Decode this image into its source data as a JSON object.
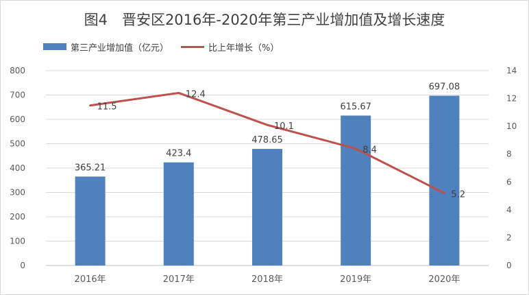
{
  "chart_data": {
    "type": "bar",
    "title": "图4　晋安区2016年-2020年第三产业增加值及增长速度",
    "categories": [
      "2016年",
      "2017年",
      "2018年",
      "2019年",
      "2020年"
    ],
    "series": [
      {
        "name": "第三产业增加值（亿元）",
        "type": "bar",
        "axis": "left",
        "color": "#4f81bd",
        "values": [
          365.21,
          423.4,
          478.65,
          615.67,
          697.08
        ],
        "labels": [
          "365.21",
          "423.4",
          "478.65",
          "615.67",
          "697.08"
        ]
      },
      {
        "name": "比上年增长（%）",
        "type": "line",
        "axis": "right",
        "color": "#c0504d",
        "values": [
          11.5,
          12.4,
          10.1,
          8.4,
          5.2
        ],
        "labels": [
          "11.5",
          "12.4",
          "10.1",
          "8.4",
          "5.2"
        ]
      }
    ],
    "y_left": {
      "min": 0,
      "max": 800,
      "step": 100,
      "ticks": [
        "0",
        "100",
        "200",
        "300",
        "400",
        "500",
        "600",
        "700",
        "800"
      ]
    },
    "y_right": {
      "min": 0,
      "max": 14,
      "step": 2,
      "ticks": [
        "0",
        "2",
        "4",
        "6",
        "8",
        "10",
        "12",
        "14"
      ]
    },
    "grid": true,
    "legend": "top-left"
  }
}
